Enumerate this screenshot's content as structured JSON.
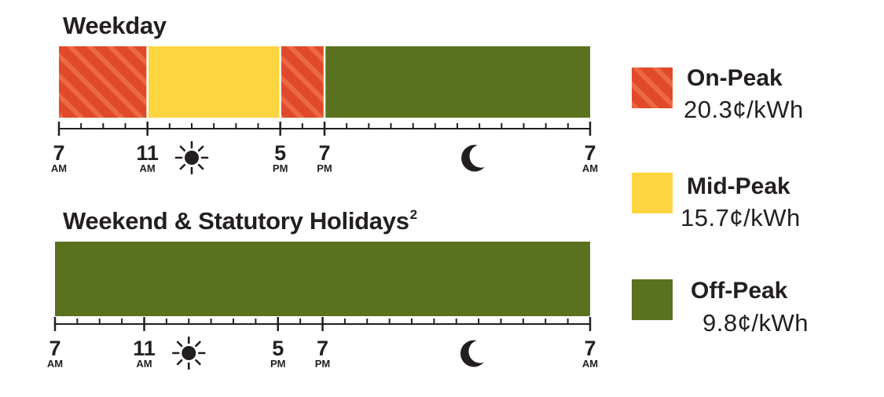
{
  "chart_data": [
    {
      "type": "timeline",
      "title": "Weekday",
      "title_sup": "",
      "segments": [
        {
          "start": 7,
          "end": 11,
          "period": "on_peak"
        },
        {
          "start": 11,
          "end": 17,
          "period": "mid_peak"
        },
        {
          "start": 17,
          "end": 19,
          "period": "on_peak"
        },
        {
          "start": 19,
          "end": 31,
          "period": "off_peak"
        }
      ],
      "ticks": [
        {
          "hour": 7,
          "num": "7",
          "suffix": "AM"
        },
        {
          "hour": 11,
          "num": "11",
          "suffix": "AM"
        },
        {
          "hour": 17,
          "num": "5",
          "suffix": "PM"
        },
        {
          "hour": 19,
          "num": "7",
          "suffix": "PM"
        },
        {
          "hour": 31,
          "num": "7",
          "suffix": "AM"
        }
      ],
      "sun_icon": "sun-icon",
      "moon_icon": "moon-icon"
    },
    {
      "type": "timeline",
      "title": "Weekend & Statutory Holidays",
      "title_sup": "2",
      "segments": [
        {
          "start": 7,
          "end": 31,
          "period": "off_peak"
        }
      ],
      "ticks": [
        {
          "hour": 7,
          "num": "7",
          "suffix": "AM"
        },
        {
          "hour": 11,
          "num": "11",
          "suffix": "AM"
        },
        {
          "hour": 17,
          "num": "5",
          "suffix": "PM"
        },
        {
          "hour": 19,
          "num": "7",
          "suffix": "PM"
        },
        {
          "hour": 31,
          "num": "7",
          "suffix": "AM"
        }
      ],
      "sun_icon": "sun-icon",
      "moon_icon": "moon-icon"
    }
  ],
  "legend": [
    {
      "key": "on_peak",
      "name": "On-Peak",
      "price": "20.3¢/kWh",
      "color": "#e04a2a",
      "stripe": "#ec6a42",
      "pattern": "striped"
    },
    {
      "key": "mid_peak",
      "name": "Mid-Peak",
      "price": "15.7¢/kWh",
      "color": "#fdd540",
      "pattern": "solid"
    },
    {
      "key": "off_peak",
      "name": "Off-Peak",
      "price": "9.8¢/kWh",
      "color": "#5a721e",
      "pattern": "solid"
    }
  ]
}
